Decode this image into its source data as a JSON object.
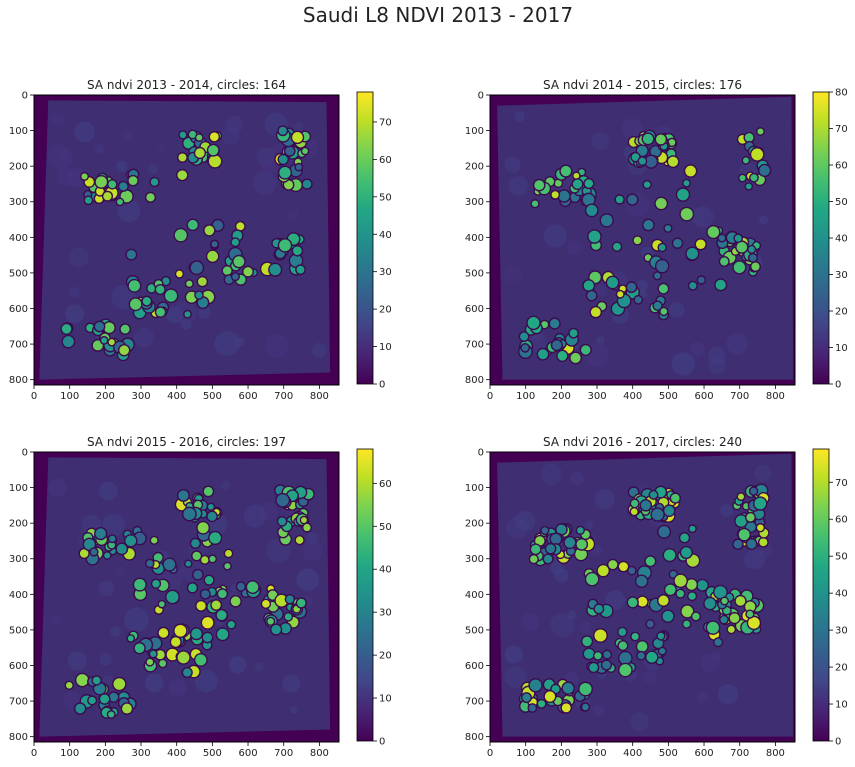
{
  "figure": {
    "suptitle": "Saudi L8 NDVI 2013 - 2017"
  },
  "colormap": {
    "name": "viridis",
    "stops": [
      "#440154",
      "#482475",
      "#414487",
      "#355f8d",
      "#2a788e",
      "#21918c",
      "#22a884",
      "#44bf70",
      "#7ad151",
      "#bddf26",
      "#fde725"
    ]
  },
  "colors": {
    "background_field": "#3f2f72",
    "outside_area": "#440154",
    "circle_ring": "#3b0a4f"
  },
  "chart_data": [
    {
      "type": "heatmap",
      "title": "SA ndvi 2013 - 2014, circles: 164",
      "xticks": [
        0,
        100,
        200,
        300,
        400,
        500,
        600,
        700,
        800
      ],
      "yticks": [
        0,
        100,
        200,
        300,
        400,
        500,
        600,
        700,
        800
      ],
      "xlim": [
        0,
        855
      ],
      "ylim": [
        815,
        0
      ],
      "colorbar": {
        "min": 0,
        "max": 78,
        "ticks": [
          0,
          10,
          20,
          30,
          40,
          50,
          60,
          70
        ]
      },
      "circles_count": 164
    },
    {
      "type": "heatmap",
      "title": "SA ndvi 2014 - 2015, circles: 176",
      "xticks": [
        0,
        100,
        200,
        300,
        400,
        500,
        600,
        700,
        800
      ],
      "yticks": [
        0,
        100,
        200,
        300,
        400,
        500,
        600,
        700,
        800
      ],
      "xlim": [
        0,
        855
      ],
      "ylim": [
        815,
        0
      ],
      "colorbar": {
        "min": 0,
        "max": 80,
        "ticks": [
          0,
          10,
          20,
          30,
          40,
          50,
          60,
          70,
          80
        ]
      },
      "circles_count": 176
    },
    {
      "type": "heatmap",
      "title": "SA ndvi 2015 - 2016, circles: 197",
      "xticks": [
        0,
        100,
        200,
        300,
        400,
        500,
        600,
        700,
        800
      ],
      "yticks": [
        0,
        100,
        200,
        300,
        400,
        500,
        600,
        700,
        800
      ],
      "xlim": [
        0,
        855
      ],
      "ylim": [
        815,
        0
      ],
      "colorbar": {
        "min": 0,
        "max": 68,
        "ticks": [
          0,
          10,
          20,
          30,
          40,
          50,
          60
        ]
      },
      "circles_count": 197
    },
    {
      "type": "heatmap",
      "title": "SA ndvi 2016 - 2017, circles: 240",
      "xticks": [
        0,
        100,
        200,
        300,
        400,
        500,
        600,
        700,
        800
      ],
      "yticks": [
        0,
        100,
        200,
        300,
        400,
        500,
        600,
        700,
        800
      ],
      "xlim": [
        0,
        855
      ],
      "ylim": [
        815,
        0
      ],
      "colorbar": {
        "min": 0,
        "max": 79,
        "ticks": [
          0,
          10,
          20,
          30,
          40,
          50,
          60,
          70
        ]
      },
      "circles_count": 240
    }
  ]
}
